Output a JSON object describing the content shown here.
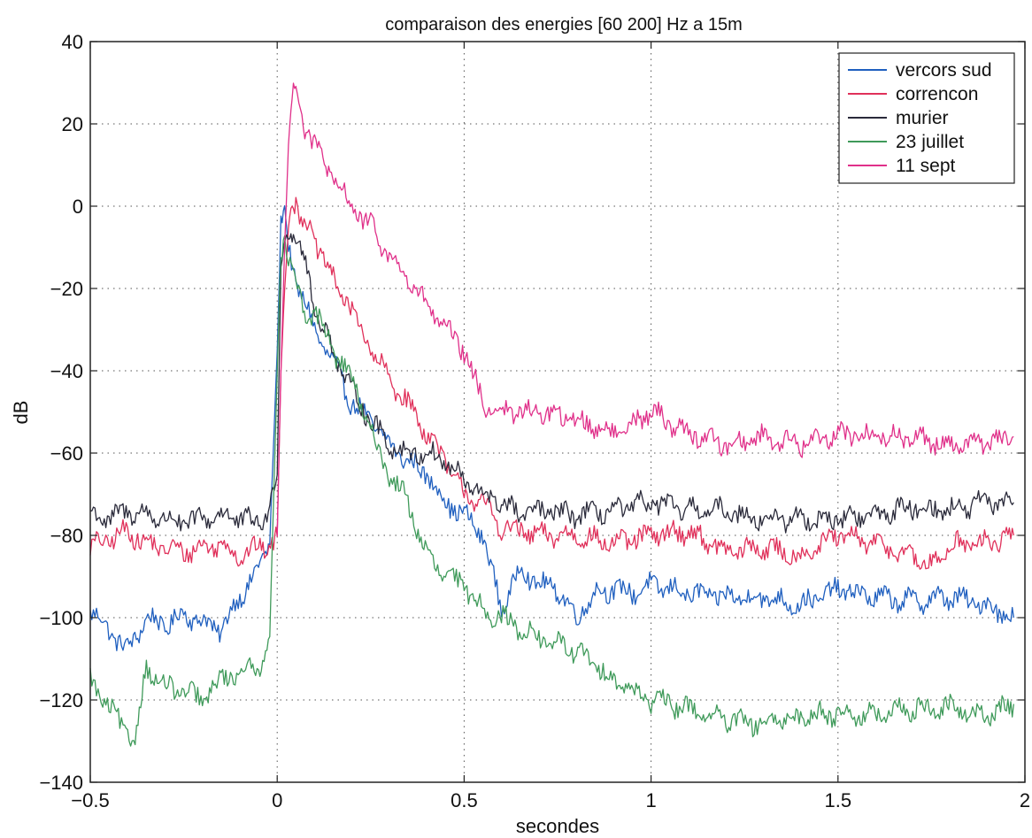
{
  "chart_data": {
    "type": "line",
    "title": "comparaison des energies [60  200] Hz a 15m",
    "xlabel": "secondes",
    "ylabel": "dB",
    "xlim": [
      -0.5,
      2.0
    ],
    "ylim": [
      -140,
      40
    ],
    "xticks": [
      -0.5,
      0,
      0.5,
      1,
      1.5,
      2
    ],
    "xtick_labels": [
      "−0.5",
      "0",
      "0.5",
      "1",
      "1.5",
      "2"
    ],
    "yticks": [
      -140,
      -120,
      -100,
      -80,
      -60,
      -40,
      -20,
      0,
      20,
      40
    ],
    "ytick_labels": [
      "−140",
      "−120",
      "−100",
      "−80",
      "−60",
      "−40",
      "−20",
      "0",
      "20",
      "40"
    ],
    "grid": true,
    "grid_style": "dotted",
    "legend_position": "top-right",
    "series": [
      {
        "name": "vercors sud",
        "color": "#1f5fbf",
        "x": [
          -0.5,
          -0.45,
          -0.4,
          -0.35,
          -0.3,
          -0.25,
          -0.2,
          -0.15,
          -0.1,
          -0.05,
          -0.02,
          0.0,
          0.01,
          0.02,
          0.03,
          0.05,
          0.08,
          0.1,
          0.15,
          0.2,
          0.25,
          0.3,
          0.35,
          0.4,
          0.45,
          0.5,
          0.55,
          0.6,
          0.65,
          0.7,
          0.75,
          0.8,
          0.85,
          0.9,
          0.95,
          1.0,
          1.1,
          1.2,
          1.3,
          1.4,
          1.5,
          1.6,
          1.7,
          1.8,
          1.9,
          1.97
        ],
        "y": [
          -98,
          -103,
          -108,
          -100,
          -102,
          -99,
          -101,
          -103,
          -95,
          -88,
          -82,
          -35,
          -5,
          0,
          -10,
          -18,
          -25,
          -30,
          -38,
          -48,
          -52,
          -58,
          -62,
          -65,
          -72,
          -75,
          -80,
          -98,
          -88,
          -92,
          -93,
          -100,
          -94,
          -93,
          -94,
          -92,
          -94,
          -95,
          -95,
          -97,
          -93,
          -95,
          -96,
          -95,
          -97,
          -100
        ]
      },
      {
        "name": "correncon",
        "color": "#e0305a",
        "x": [
          -0.5,
          -0.45,
          -0.4,
          -0.35,
          -0.3,
          -0.25,
          -0.2,
          -0.15,
          -0.1,
          -0.05,
          -0.01,
          0.0,
          0.01,
          0.02,
          0.03,
          0.04,
          0.05,
          0.06,
          0.08,
          0.1,
          0.12,
          0.15,
          0.2,
          0.25,
          0.3,
          0.35,
          0.4,
          0.45,
          0.5,
          0.55,
          0.6,
          0.7,
          0.8,
          0.9,
          1.0,
          1.1,
          1.2,
          1.3,
          1.4,
          1.5,
          1.6,
          1.7,
          1.75,
          1.8,
          1.9,
          1.97
        ],
        "y": [
          -83,
          -81,
          -79,
          -82,
          -83,
          -84,
          -83,
          -82,
          -85,
          -83,
          -82,
          -80,
          -40,
          -20,
          -5,
          2,
          1,
          -3,
          -5,
          -8,
          -12,
          -18,
          -25,
          -35,
          -42,
          -48,
          -55,
          -62,
          -70,
          -72,
          -78,
          -80,
          -80,
          -82,
          -80,
          -79,
          -84,
          -83,
          -85,
          -80,
          -82,
          -85,
          -88,
          -82,
          -82,
          -80
        ]
      },
      {
        "name": "murier",
        "color": "#2a2a3a",
        "x": [
          -0.5,
          -0.45,
          -0.4,
          -0.35,
          -0.3,
          -0.25,
          -0.2,
          -0.15,
          -0.1,
          -0.05,
          -0.02,
          0.0,
          0.01,
          0.02,
          0.03,
          0.04,
          0.05,
          0.08,
          0.1,
          0.15,
          0.2,
          0.25,
          0.3,
          0.35,
          0.4,
          0.45,
          0.5,
          0.55,
          0.6,
          0.65,
          0.7,
          0.8,
          0.9,
          1.0,
          1.1,
          1.2,
          1.3,
          1.4,
          1.5,
          1.6,
          1.7,
          1.8,
          1.9,
          1.97
        ],
        "y": [
          -75,
          -76,
          -74,
          -75,
          -76,
          -77,
          -76,
          -75,
          -76,
          -77,
          -74,
          -65,
          -15,
          -8,
          -5,
          -6,
          -8,
          -15,
          -25,
          -35,
          -45,
          -52,
          -58,
          -60,
          -60,
          -62,
          -67,
          -70,
          -72,
          -75,
          -74,
          -75,
          -74,
          -72,
          -74,
          -74,
          -76,
          -76,
          -76,
          -75,
          -73,
          -74,
          -72,
          -72
        ]
      },
      {
        "name": "23 juillet",
        "color": "#3f9a5a",
        "x": [
          -0.5,
          -0.45,
          -0.4,
          -0.38,
          -0.35,
          -0.3,
          -0.25,
          -0.2,
          -0.15,
          -0.1,
          -0.05,
          -0.02,
          0.0,
          0.01,
          0.02,
          0.03,
          0.05,
          0.08,
          0.1,
          0.15,
          0.2,
          0.25,
          0.3,
          0.35,
          0.4,
          0.45,
          0.5,
          0.55,
          0.6,
          0.7,
          0.8,
          0.9,
          1.0,
          1.1,
          1.2,
          1.3,
          1.4,
          1.5,
          1.6,
          1.7,
          1.8,
          1.9,
          1.97
        ],
        "y": [
          -115,
          -122,
          -128,
          -130,
          -112,
          -117,
          -118,
          -120,
          -115,
          -113,
          -112,
          -105,
          -40,
          -10,
          -8,
          -12,
          -20,
          -28,
          -25,
          -35,
          -42,
          -55,
          -65,
          -72,
          -85,
          -90,
          -92,
          -98,
          -100,
          -105,
          -108,
          -115,
          -120,
          -122,
          -125,
          -126,
          -124,
          -123,
          -124,
          -122,
          -122,
          -124,
          -121
        ]
      },
      {
        "name": "11 sept",
        "color": "#e0308a",
        "x": [
          0.0,
          0.01,
          0.02,
          0.03,
          0.04,
          0.05,
          0.07,
          0.1,
          0.13,
          0.16,
          0.2,
          0.25,
          0.3,
          0.35,
          0.4,
          0.45,
          0.5,
          0.55,
          0.6,
          0.7,
          0.8,
          0.9,
          1.0,
          1.1,
          1.2,
          1.3,
          1.4,
          1.5,
          1.6,
          1.7,
          1.8,
          1.9,
          1.97
        ],
        "y": [
          -80,
          -40,
          -10,
          15,
          27,
          30,
          20,
          15,
          10,
          5,
          0,
          -5,
          -12,
          -18,
          -24,
          -30,
          -35,
          -48,
          -50,
          -50,
          -52,
          -55,
          -50,
          -55,
          -58,
          -56,
          -58,
          -55,
          -56,
          -56,
          -58,
          -57,
          -56
        ]
      }
    ]
  }
}
